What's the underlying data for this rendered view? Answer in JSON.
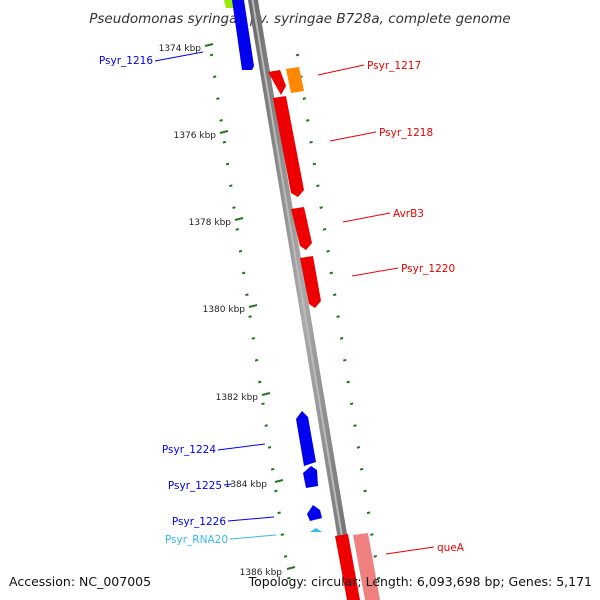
{
  "title": "Pseudomonas syringae pv. syringae B728a, complete genome",
  "footer": {
    "accession": "Accession: NC_007005",
    "summary": "Topology: circular; Length: 6,093,698 bp; Genes: 5,171"
  },
  "colors": {
    "forward_gene": "#ee0000",
    "reverse_gene": "#0000ee",
    "rna_gene": "#33bbee",
    "pseudo_orange": "#ff8800",
    "pink_gene": "#f08080",
    "lime_gene": "#99ee00",
    "tick_green": "#227722",
    "backbone": "#888888"
  },
  "ticks": [
    {
      "label": "1374 kbp"
    },
    {
      "label": "1376 kbp"
    },
    {
      "label": "1378 kbp"
    },
    {
      "label": "1380 kbp"
    },
    {
      "label": "1382 kbp"
    },
    {
      "label": "1384 kbp"
    },
    {
      "label": "1386 kbp"
    }
  ],
  "genes": [
    {
      "name": "Psyr_1216",
      "strand": "reverse",
      "color": "#0000ee"
    },
    {
      "name": "Psyr_1217",
      "strand": "forward",
      "color": "#ee0000"
    },
    {
      "name": "Psyr_1218",
      "strand": "forward",
      "color": "#ee0000"
    },
    {
      "name": "AvrB3",
      "strand": "forward",
      "color": "#ee0000"
    },
    {
      "name": "Psyr_1220",
      "strand": "forward",
      "color": "#ee0000"
    },
    {
      "name": "Psyr_1224",
      "strand": "reverse",
      "color": "#0000ee"
    },
    {
      "name": "Psyr_1225",
      "strand": "reverse",
      "color": "#0000ee"
    },
    {
      "name": "Psyr_1226",
      "strand": "reverse",
      "color": "#0000ee"
    },
    {
      "name": "Psyr_RNA20",
      "strand": "reverse",
      "color": "#33bbee"
    },
    {
      "name": "queA",
      "strand": "forward",
      "color": "#ee0000"
    }
  ]
}
